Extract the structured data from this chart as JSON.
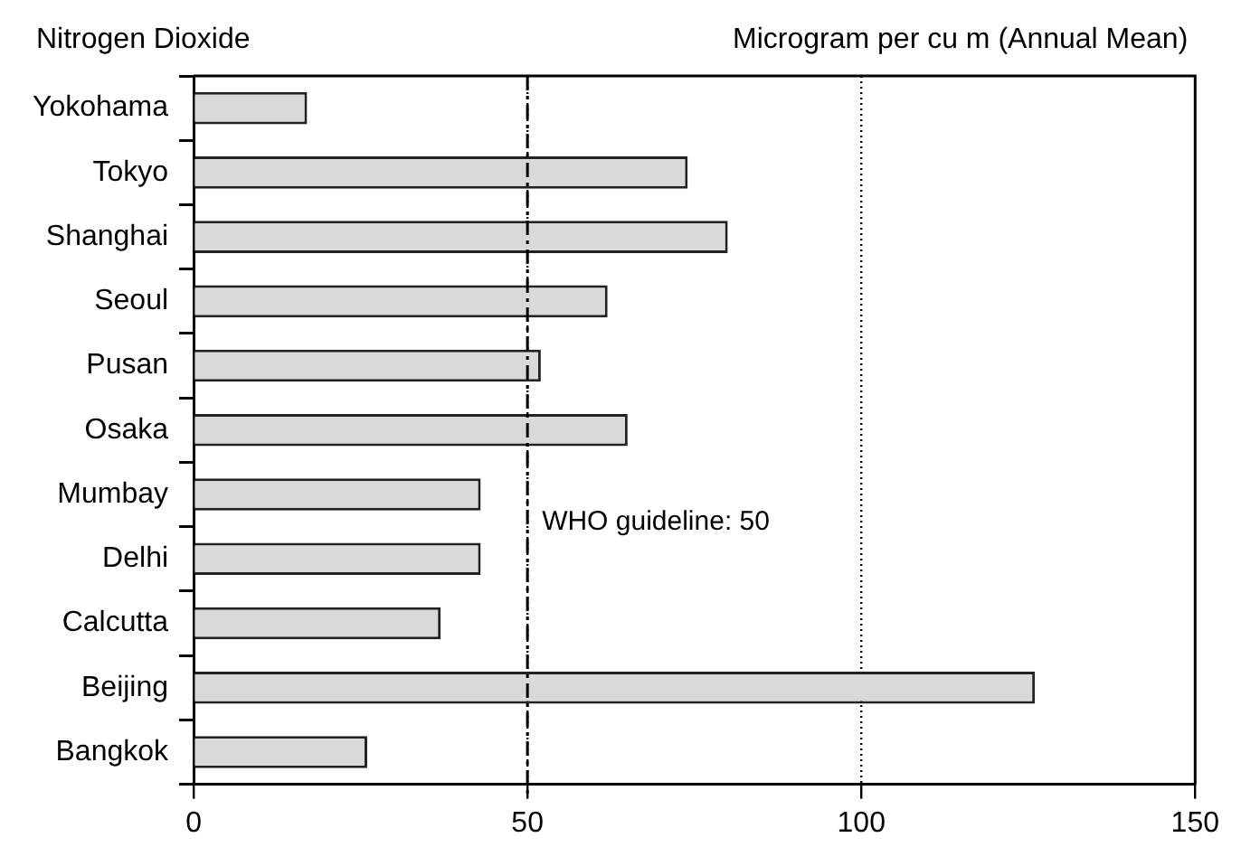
{
  "chart_data": {
    "type": "bar",
    "orientation": "horizontal",
    "title": "Nitrogen Dioxide",
    "subtitle": "Microgram per cu m (Annual Mean)",
    "categories": [
      "Yokohama",
      "Tokyo",
      "Shanghai",
      "Seoul",
      "Pusan",
      "Osaka",
      "Mumbay",
      "Delhi",
      "Calcutta",
      "Beijing",
      "Bangkok"
    ],
    "values": [
      17,
      74,
      80,
      62,
      52,
      65,
      43,
      43,
      37,
      126,
      26
    ],
    "color": "#d9d9d9",
    "xlim": [
      0,
      150
    ],
    "xticks": [
      0,
      50,
      100,
      150
    ],
    "grid": "x",
    "legend": false,
    "ref_lines": [
      {
        "axis": "x",
        "value": 50,
        "label": "WHO guideline: 50",
        "line_style": "dashdot"
      }
    ]
  }
}
